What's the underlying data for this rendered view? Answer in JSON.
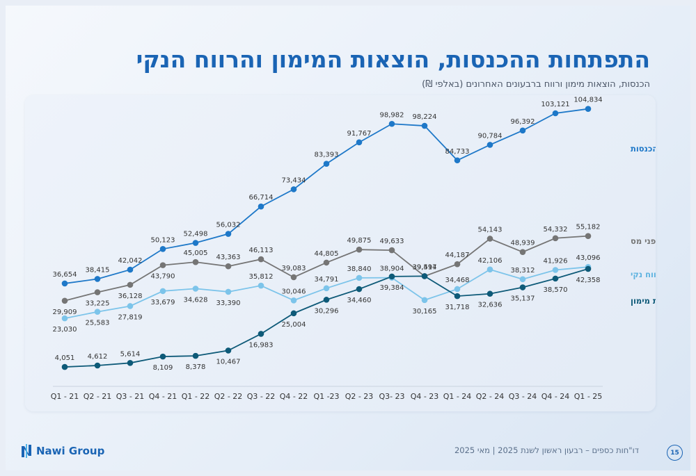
{
  "slide": {
    "title": "התפתחות ההכנסות, הוצאות המימון והרווח הנקי",
    "subtitle": "הכנסות, הוצאות מימון ורווח ברבעונים האחרונים (באלפי ₪)",
    "footer_text": "דו\"חות כספים – רבעון ראשון לשנת 2025 | מאי 2025",
    "page_number": "15",
    "logo_text": "Nawi Group"
  },
  "colors": {
    "title": "#1a64b4",
    "revenue": "#1e78c8",
    "pretax": "#757575",
    "net": "#7cc4ea",
    "finance": "#0e5a78"
  },
  "chart_data": {
    "type": "line",
    "categories": [
      "Q1 - 21",
      "Q2 - 21",
      "Q3 - 21",
      "Q4 - 21",
      "Q1 - 22",
      "Q2 - 22",
      "Q3 - 22",
      "Q4 - 22",
      "Q1 -23",
      "Q2 - 23",
      "Q3- 23",
      "Q4 - 23",
      "Q1 - 24",
      "Q2 - 24",
      "Q3 - 24",
      "Q4 - 24",
      "Q1 - 25"
    ],
    "series": [
      {
        "name": "הכנסות",
        "key": "revenue",
        "values": [
          36654,
          38415,
          42042,
          50123,
          52498,
          56032,
          66714,
          73434,
          83393,
          91767,
          98982,
          98224,
          84733,
          90784,
          96392,
          103121,
          104834
        ],
        "labels": [
          "36,654",
          "38,415",
          "42,042",
          "50,123",
          "52,498",
          "56,032",
          "66,714",
          "73,434",
          "83,393",
          "91,767",
          "98,982",
          "98,224",
          "84,733",
          "90,784",
          "96,392",
          "103,121",
          "104,834"
        ]
      },
      {
        "name": "רווח לפני מס",
        "key": "pretax",
        "values": [
          29909,
          33225,
          36128,
          43790,
          45005,
          43363,
          46113,
          39083,
          44805,
          49875,
          49633,
          39497,
          44187,
          54143,
          48939,
          54332,
          55182
        ],
        "labels": [
          "29,909",
          "33,225",
          "36,128",
          "43,790",
          "45,005",
          "43,363",
          "46,113",
          "39,083",
          "44,805",
          "49,875",
          "49,633",
          "39,497",
          "44,187",
          "54,143",
          "48,939",
          "54,332",
          "55,182"
        ]
      },
      {
        "name": "רווח נקי",
        "key": "net",
        "values": [
          23030,
          25583,
          27819,
          33679,
          34628,
          33390,
          35812,
          30046,
          34791,
          38840,
          38904,
          30165,
          34468,
          42106,
          38312,
          41926,
          43096
        ],
        "labels": [
          "23,030",
          "25,583",
          "27,819",
          "33,679",
          "34,628",
          "33,390",
          "35,812",
          "30,046",
          "34,791",
          "38,840",
          "38,904",
          "30,165",
          "34,468",
          "42,106",
          "38,312",
          "41,926",
          "43,096"
        ]
      },
      {
        "name": "הוצאות מימון",
        "key": "finance",
        "values": [
          4051,
          4612,
          5614,
          8109,
          8378,
          10467,
          16983,
          25004,
          30296,
          34460,
          39384,
          39514,
          31718,
          32636,
          35137,
          38570,
          42358
        ],
        "labels": [
          "4,051",
          "4,612",
          "5,614",
          "8,109",
          "8,378",
          "10,467",
          "16,983",
          "25,004",
          "30,296",
          "34,460",
          "39,384",
          "39,514",
          "31,718",
          "32,636",
          "35,137",
          "38,570",
          "42,358"
        ]
      }
    ],
    "title": "",
    "xlabel": "",
    "ylabel": "",
    "ylim": [
      0,
      110000
    ],
    "grid": false,
    "legend": "right, at line ends"
  }
}
